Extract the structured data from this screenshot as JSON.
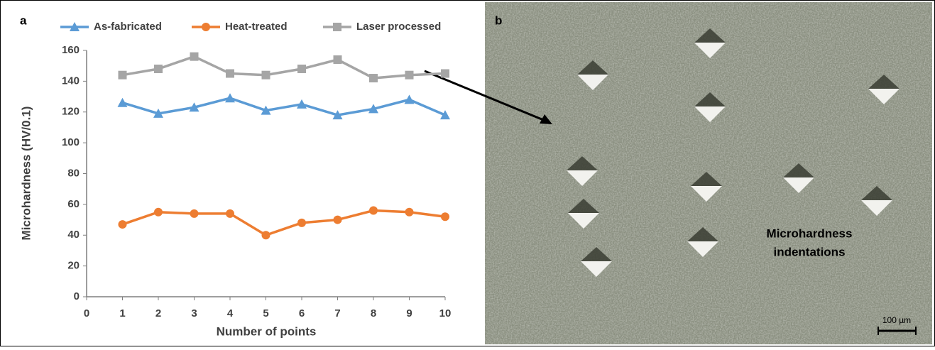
{
  "panel_labels": [
    "a",
    "b"
  ],
  "chart_data": {
    "type": "line",
    "x_label": "Number of points",
    "y_label": "Microhardness (HV/0.1)",
    "x": [
      1,
      2,
      3,
      4,
      5,
      6,
      7,
      8,
      9,
      10
    ],
    "xlim": [
      0,
      10
    ],
    "xticks": [
      0,
      1,
      2,
      3,
      4,
      5,
      6,
      7,
      8,
      9,
      10
    ],
    "ylim": [
      0,
      160
    ],
    "yticks": [
      0,
      20,
      40,
      60,
      80,
      100,
      120,
      140,
      160
    ],
    "grid": false,
    "legend": "top",
    "series": [
      {
        "name": "As-fabricated",
        "color": "#5b9bd5",
        "marker": "triangle",
        "values": [
          126,
          119,
          123,
          129,
          121,
          125,
          118,
          122,
          128,
          118
        ]
      },
      {
        "name": "Heat-treated",
        "color": "#ed7d31",
        "marker": "circle",
        "values": [
          47,
          55,
          54,
          54,
          40,
          48,
          50,
          56,
          55,
          52
        ]
      },
      {
        "name": "Laser processed",
        "color": "#a5a5a5",
        "marker": "square",
        "values": [
          144,
          148,
          156,
          145,
          144,
          148,
          154,
          142,
          144,
          145
        ]
      }
    ]
  },
  "micrograph": {
    "annotation": [
      "Microhardness",
      "indentations"
    ],
    "scale_bar": "100 µm"
  }
}
